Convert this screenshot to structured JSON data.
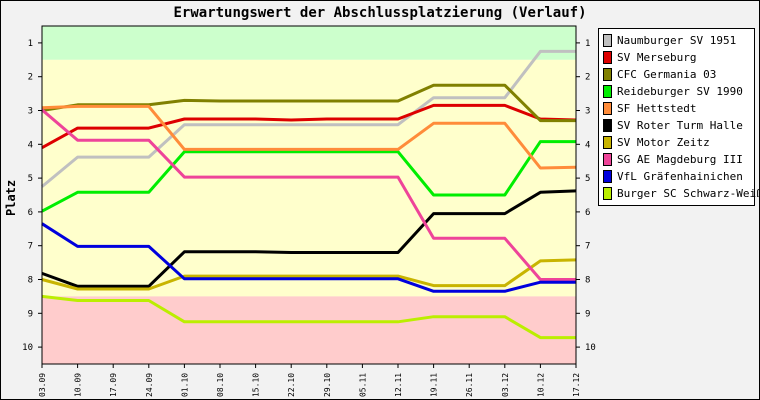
{
  "chart_data": {
    "type": "line",
    "title": "Erwartungswert der Abschlussplatzierung (Verlauf)",
    "ylabel": "Platz",
    "xlabel": "",
    "ylim": [
      0.5,
      10.5
    ],
    "y_ticks": [
      "1",
      "2",
      "3",
      "4",
      "5",
      "6",
      "7",
      "8",
      "9",
      "10"
    ],
    "bands": [
      {
        "from": 0.5,
        "to": 1.5,
        "color": "#ccffcc"
      },
      {
        "from": 1.5,
        "to": 8.5,
        "color": "#ffffcc"
      },
      {
        "from": 8.5,
        "to": 10.5,
        "color": "#ffcccc"
      }
    ],
    "categories": [
      "03.09",
      "10.09",
      "17.09",
      "24.09",
      "01.10",
      "08.10",
      "15.10",
      "22.10",
      "29.10",
      "05.11",
      "12.11",
      "19.11",
      "26.11",
      "03.12",
      "10.12",
      "17.12"
    ],
    "series": [
      {
        "name": "Naumburger SV 1951",
        "color": "#c0c0c0",
        "values": [
          5.25,
          4.38,
          4.38,
          4.38,
          3.42,
          3.42,
          3.42,
          3.42,
          3.42,
          3.42,
          3.42,
          2.62,
          2.62,
          2.62,
          1.25,
          1.25
        ]
      },
      {
        "name": "SV Merseburg",
        "color": "#dd0000",
        "values": [
          4.1,
          3.52,
          3.52,
          3.52,
          3.25,
          3.25,
          3.25,
          3.28,
          3.25,
          3.25,
          3.25,
          2.85,
          2.85,
          2.85,
          3.25,
          3.28
        ]
      },
      {
        "name": "CFC Germania 03",
        "color": "#808000",
        "values": [
          3.0,
          2.83,
          2.83,
          2.83,
          2.7,
          2.72,
          2.72,
          2.72,
          2.72,
          2.72,
          2.72,
          2.25,
          2.25,
          2.25,
          3.3,
          3.3
        ]
      },
      {
        "name": "Reideburger SV 1990",
        "color": "#00ee00",
        "values": [
          5.98,
          5.42,
          5.42,
          5.42,
          4.22,
          4.22,
          4.22,
          4.22,
          4.22,
          4.22,
          4.22,
          5.5,
          5.5,
          5.5,
          3.92,
          3.92
        ]
      },
      {
        "name": "SF Hettstedt",
        "color": "#ff8c3a",
        "values": [
          2.92,
          2.88,
          2.88,
          2.88,
          4.15,
          4.15,
          4.15,
          4.15,
          4.15,
          4.15,
          4.15,
          3.38,
          3.38,
          3.38,
          4.7,
          4.68
        ]
      },
      {
        "name": "SV Roter Turm Halle",
        "color": "#000000",
        "values": [
          7.82,
          8.2,
          8.2,
          8.2,
          7.18,
          7.18,
          7.18,
          7.2,
          7.2,
          7.2,
          7.2,
          6.05,
          6.05,
          6.05,
          5.42,
          5.38
        ]
      },
      {
        "name": "SV Motor Zeitz",
        "color": "#c8b400",
        "values": [
          8.0,
          8.28,
          8.28,
          8.28,
          7.9,
          7.9,
          7.9,
          7.9,
          7.9,
          7.9,
          7.9,
          8.18,
          8.18,
          8.18,
          7.45,
          7.42
        ]
      },
      {
        "name": "SG AE Magdeburg III",
        "color": "#ee4499",
        "values": [
          2.98,
          3.88,
          3.88,
          3.88,
          4.97,
          4.97,
          4.97,
          4.97,
          4.97,
          4.97,
          4.97,
          6.78,
          6.78,
          6.78,
          8.0,
          8.0
        ]
      },
      {
        "name": "VfL Gräfenhainichen",
        "color": "#0000dd",
        "values": [
          6.35,
          7.02,
          7.02,
          7.02,
          7.98,
          7.98,
          7.98,
          7.98,
          7.98,
          7.98,
          7.98,
          8.35,
          8.35,
          8.35,
          8.08,
          8.08
        ]
      },
      {
        "name": "Burger SC Schwarz-Weiß",
        "color": "#bbee00",
        "values": [
          8.5,
          8.62,
          8.62,
          8.62,
          9.25,
          9.25,
          9.25,
          9.25,
          9.25,
          9.25,
          9.25,
          9.1,
          9.1,
          9.1,
          9.72,
          9.72
        ]
      }
    ],
    "legend_position": "right",
    "grid": false
  }
}
